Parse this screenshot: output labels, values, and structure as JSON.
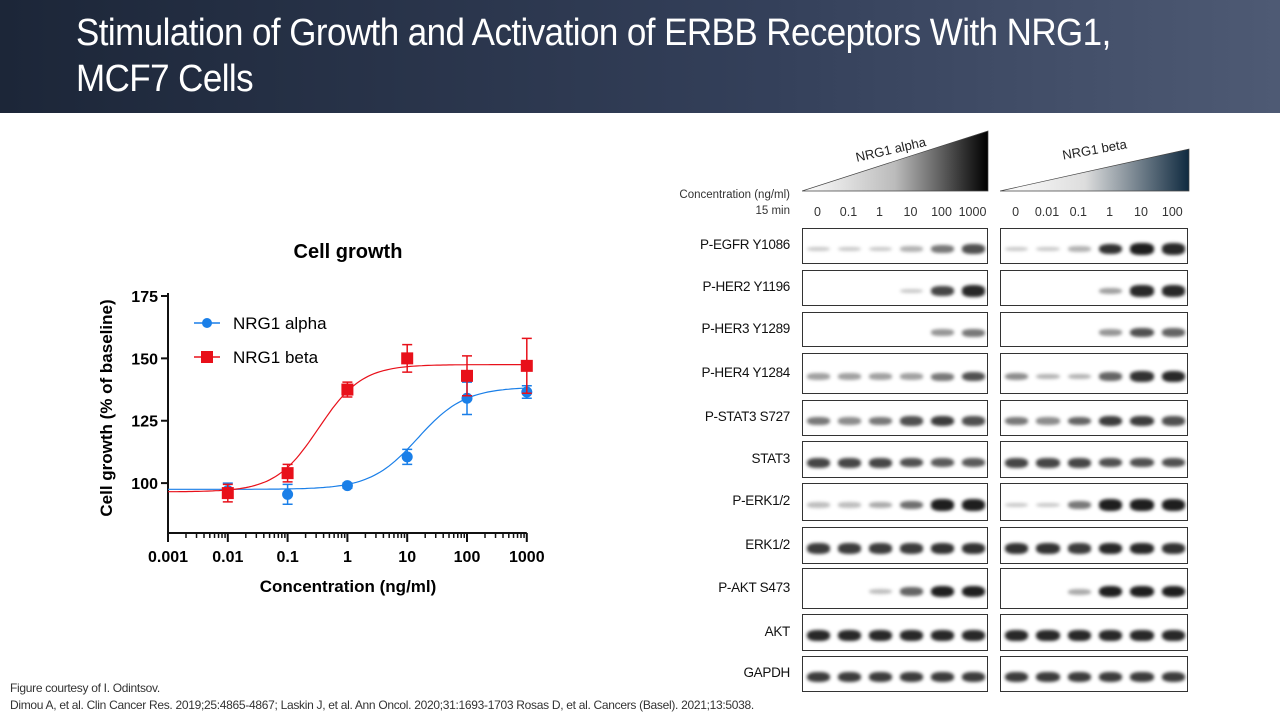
{
  "title": "Stimulation of Growth and Activation of ERBB Receptors With NRG1, MCF7 Cells",
  "footer": {
    "courtesy": "Figure courtesy of I. Odintsov.",
    "references": "Dimou A, et al. Clin Cancer Res. 2019;25:4865-4867; Laskin J, et al. Ann Oncol. 2020;31:1693-1703 Rosas D, et al. Cancers (Basel). 2021;13:5038."
  },
  "chart_data": {
    "type": "scatter",
    "title": "Cell growth",
    "xlabel": "Concentration (ng/ml)",
    "ylabel": "Cell growth (% of baseline)",
    "xscale": "log",
    "xlim": [
      0.001,
      1000
    ],
    "ylim": [
      80,
      175
    ],
    "xticks": [
      "0.001",
      "0.01",
      "0.1",
      "1",
      "10",
      "100",
      "1000"
    ],
    "yticks": [
      "100",
      "125",
      "150",
      "175"
    ],
    "legend_position": "top-left",
    "grid": false,
    "series": [
      {
        "name": "NRG1 alpha",
        "color": "#1a7fe8",
        "marker": "circle",
        "x": [
          0.01,
          0.1,
          1,
          10,
          100,
          1000
        ],
        "y": [
          97,
          95.5,
          99,
          110.5,
          134,
          136.5
        ],
        "error": [
          3,
          4,
          1,
          3,
          6.5,
          2.5
        ],
        "fit": {
          "bottom": 97.5,
          "top": 138.5,
          "ec50": 15,
          "hill": 1.1
        }
      },
      {
        "name": "NRG1 beta",
        "color": "#e8101a",
        "marker": "square",
        "x": [
          0.01,
          0.1,
          1,
          10,
          100,
          1000
        ],
        "y": [
          96,
          104,
          137.5,
          150,
          143,
          147
        ],
        "error": [
          3.5,
          3.5,
          3,
          5.5,
          8,
          11
        ],
        "fit": {
          "bottom": 96.5,
          "top": 147.5,
          "ec50": 0.33,
          "hill": 1.2
        }
      }
    ]
  },
  "western": {
    "concentration_label": "Concentration (ng/ml)",
    "time_label": "15 min",
    "alpha": {
      "name": "NRG1 alpha",
      "lanes": [
        "0",
        "0.1",
        "1",
        "10",
        "100",
        "1000"
      ]
    },
    "beta": {
      "name": "NRG1 beta",
      "lanes": [
        "0",
        "0.01",
        "0.1",
        "1",
        "10",
        "100"
      ]
    },
    "rows": [
      {
        "label": "P-EGFR Y1086",
        "alpha": [
          0.1,
          0.1,
          0.1,
          0.2,
          0.5,
          0.7
        ],
        "beta": [
          0.1,
          0.1,
          0.2,
          0.85,
          0.95,
          0.9
        ]
      },
      {
        "label": "P-HER2 Y1196",
        "alpha": [
          0,
          0,
          0,
          0.1,
          0.75,
          0.9
        ],
        "beta": [
          0,
          0,
          0,
          0.3,
          0.9,
          0.9
        ]
      },
      {
        "label": "P-HER3 Y1289",
        "alpha": [
          0,
          0,
          0,
          0,
          0.35,
          0.5
        ],
        "beta": [
          0,
          0,
          0,
          0.35,
          0.7,
          0.6
        ]
      },
      {
        "label": "P-HER4 Y1284",
        "alpha": [
          0.3,
          0.3,
          0.3,
          0.3,
          0.5,
          0.7
        ],
        "beta": [
          0.4,
          0.2,
          0.2,
          0.6,
          0.85,
          0.9
        ]
      },
      {
        "label": "P-STAT3 S727",
        "alpha": [
          0.5,
          0.4,
          0.5,
          0.7,
          0.8,
          0.7
        ],
        "beta": [
          0.5,
          0.4,
          0.6,
          0.8,
          0.8,
          0.7
        ]
      },
      {
        "label": "STAT3",
        "alpha": [
          0.75,
          0.75,
          0.75,
          0.7,
          0.65,
          0.65
        ],
        "beta": [
          0.75,
          0.75,
          0.75,
          0.7,
          0.7,
          0.7
        ]
      },
      {
        "label": "P-ERK1/2",
        "alpha": [
          0.15,
          0.15,
          0.25,
          0.55,
          0.95,
          0.95
        ],
        "beta": [
          0.1,
          0.1,
          0.5,
          0.95,
          0.95,
          0.95
        ]
      },
      {
        "label": "ERK1/2",
        "alpha": [
          0.8,
          0.8,
          0.8,
          0.8,
          0.85,
          0.85
        ],
        "beta": [
          0.85,
          0.85,
          0.8,
          0.9,
          0.9,
          0.85
        ]
      },
      {
        "label": "P-AKT S473",
        "alpha": [
          0,
          0,
          0.15,
          0.6,
          0.95,
          0.95
        ],
        "beta": [
          0,
          0,
          0.25,
          0.95,
          0.95,
          0.95
        ]
      },
      {
        "label": "AKT",
        "alpha": [
          0.9,
          0.9,
          0.9,
          0.9,
          0.9,
          0.9
        ],
        "beta": [
          0.9,
          0.9,
          0.9,
          0.9,
          0.9,
          0.9
        ]
      },
      {
        "label": "GAPDH",
        "alpha": [
          0.8,
          0.8,
          0.8,
          0.8,
          0.8,
          0.8
        ],
        "beta": [
          0.8,
          0.8,
          0.8,
          0.8,
          0.8,
          0.8
        ]
      }
    ]
  }
}
